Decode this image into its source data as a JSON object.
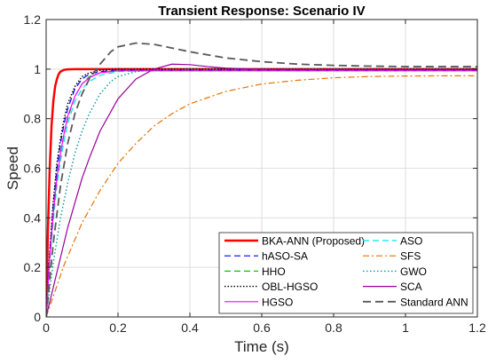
{
  "chart_data": {
    "type": "line",
    "title": "Transient Response: Scenario IV",
    "xlabel": "Time (s)",
    "ylabel": "Speed",
    "xlim": [
      0,
      1.2
    ],
    "ylim": [
      0,
      1.2
    ],
    "xticks": [
      0,
      0.2,
      0.4,
      0.6,
      0.8,
      1,
      1.2
    ],
    "xtick_labels": [
      "0",
      "0.2",
      "0.4",
      "0.6",
      "0.8",
      "1",
      "1.2"
    ],
    "yticks": [
      0,
      0.2,
      0.4,
      0.6,
      0.8,
      1,
      1.2
    ],
    "ytick_labels": [
      "0",
      "0.2",
      "0.4",
      "0.6",
      "0.8",
      "1",
      "1.2"
    ],
    "grid": true,
    "legend_position": "bottom-right",
    "legend_columns": 2,
    "series": [
      {
        "name": "BKA-ANN (Proposed)",
        "color": "#ff0000",
        "dash": "solid",
        "width": 2.5,
        "x": [
          0,
          0.005,
          0.01,
          0.015,
          0.02,
          0.025,
          0.03,
          0.035,
          0.04,
          0.05,
          0.06,
          0.08,
          0.1,
          0.15,
          1.2
        ],
        "y": [
          0,
          0.35,
          0.6,
          0.77,
          0.87,
          0.93,
          0.96,
          0.98,
          0.99,
          0.997,
          0.999,
          1.0,
          1.0,
          1.0,
          1.0
        ]
      },
      {
        "name": "ASO",
        "color": "#00e5ee",
        "dash": "7,4",
        "width": 1.2,
        "x": [
          0,
          0.01,
          0.02,
          0.03,
          0.04,
          0.05,
          0.06,
          0.08,
          0.1,
          0.12,
          0.15,
          0.2,
          0.3,
          0.5,
          1.2
        ],
        "y": [
          0,
          0.22,
          0.39,
          0.53,
          0.63,
          0.71,
          0.78,
          0.87,
          0.92,
          0.95,
          0.975,
          0.99,
          0.995,
          0.995,
          0.995
        ]
      },
      {
        "name": "hASO-SA",
        "color": "#0000ff",
        "dash": "7,4",
        "width": 1.2,
        "x": [
          0,
          0.01,
          0.02,
          0.03,
          0.04,
          0.05,
          0.06,
          0.08,
          0.1,
          0.12,
          0.15,
          0.2,
          0.3,
          0.5,
          1.2
        ],
        "y": [
          0,
          0.26,
          0.45,
          0.6,
          0.7,
          0.78,
          0.84,
          0.92,
          0.96,
          0.98,
          0.99,
          0.995,
          0.995,
          0.995,
          0.995
        ]
      },
      {
        "name": "SFS",
        "color": "#e67300",
        "dash": "7,3,2,3",
        "width": 1.2,
        "x": [
          0,
          0.05,
          0.1,
          0.15,
          0.2,
          0.25,
          0.3,
          0.35,
          0.4,
          0.5,
          0.6,
          0.7,
          0.8,
          0.9,
          1.0,
          1.1,
          1.2
        ],
        "y": [
          0,
          0.21,
          0.38,
          0.51,
          0.62,
          0.7,
          0.77,
          0.82,
          0.86,
          0.91,
          0.94,
          0.955,
          0.965,
          0.97,
          0.972,
          0.973,
          0.973
        ]
      },
      {
        "name": "HHO",
        "color": "#00cc00",
        "dash": "7,4",
        "width": 1.2,
        "x": [
          0,
          0.01,
          0.02,
          0.03,
          0.04,
          0.05,
          0.06,
          0.08,
          0.1,
          0.12,
          0.15,
          0.2,
          0.3,
          0.5,
          1.2
        ],
        "y": [
          0,
          0.24,
          0.42,
          0.56,
          0.66,
          0.74,
          0.8,
          0.89,
          0.94,
          0.97,
          0.985,
          0.995,
          0.995,
          0.995,
          0.995
        ]
      },
      {
        "name": "GWO",
        "color": "#009999",
        "dash": "1.5,2.5",
        "width": 1.4,
        "x": [
          0,
          0.02,
          0.04,
          0.06,
          0.08,
          0.1,
          0.12,
          0.15,
          0.18,
          0.2,
          0.25,
          0.3,
          0.4,
          0.5,
          1.2
        ],
        "y": [
          0,
          0.22,
          0.4,
          0.54,
          0.66,
          0.75,
          0.82,
          0.9,
          0.95,
          0.97,
          0.99,
          0.997,
          1.0,
          1.0,
          1.0
        ]
      },
      {
        "name": "OBL-HGSO",
        "color": "#000000",
        "dash": "1.5,2",
        "width": 1.4,
        "x": [
          0,
          0.01,
          0.02,
          0.03,
          0.04,
          0.05,
          0.06,
          0.08,
          0.1,
          0.12,
          0.15,
          0.2,
          0.3,
          0.5,
          1.2
        ],
        "y": [
          0,
          0.27,
          0.47,
          0.62,
          0.72,
          0.8,
          0.86,
          0.93,
          0.97,
          0.985,
          0.995,
          1.0,
          1.0,
          1.0,
          1.0
        ]
      },
      {
        "name": "SCA",
        "color": "#990099",
        "dash": "solid",
        "width": 1.2,
        "x": [
          0,
          0.02,
          0.04,
          0.06,
          0.08,
          0.1,
          0.12,
          0.15,
          0.2,
          0.25,
          0.3,
          0.35,
          0.4,
          0.45,
          0.5,
          0.6,
          0.7,
          0.8,
          1.2
        ],
        "y": [
          0,
          0.12,
          0.24,
          0.36,
          0.46,
          0.56,
          0.64,
          0.75,
          0.88,
          0.96,
          1.0,
          1.02,
          1.018,
          1.01,
          1.004,
          0.999,
          0.998,
          0.998,
          0.998
        ]
      },
      {
        "name": "HGSO",
        "color": "#ff00ff",
        "dash": "solid",
        "width": 1.2,
        "x": [
          0,
          0.01,
          0.02,
          0.03,
          0.04,
          0.05,
          0.06,
          0.08,
          0.1,
          0.12,
          0.15,
          0.2,
          0.3,
          0.5,
          1.2
        ],
        "y": [
          0,
          0.24,
          0.42,
          0.56,
          0.66,
          0.74,
          0.81,
          0.89,
          0.94,
          0.965,
          0.985,
          0.993,
          0.993,
          0.993,
          0.993
        ]
      },
      {
        "name": "Standard ANN",
        "color": "#595959",
        "dash": "9,5",
        "width": 1.8,
        "x": [
          0,
          0.02,
          0.04,
          0.06,
          0.08,
          0.1,
          0.12,
          0.15,
          0.18,
          0.2,
          0.25,
          0.3,
          0.35,
          0.4,
          0.5,
          0.6,
          0.7,
          0.8,
          0.9,
          1.0,
          1.1,
          1.2
        ],
        "y": [
          0,
          0.3,
          0.53,
          0.7,
          0.82,
          0.9,
          0.96,
          1.02,
          1.07,
          1.09,
          1.105,
          1.1,
          1.085,
          1.07,
          1.045,
          1.03,
          1.02,
          1.015,
          1.012,
          1.01,
          1.01,
          1.01
        ]
      }
    ]
  }
}
